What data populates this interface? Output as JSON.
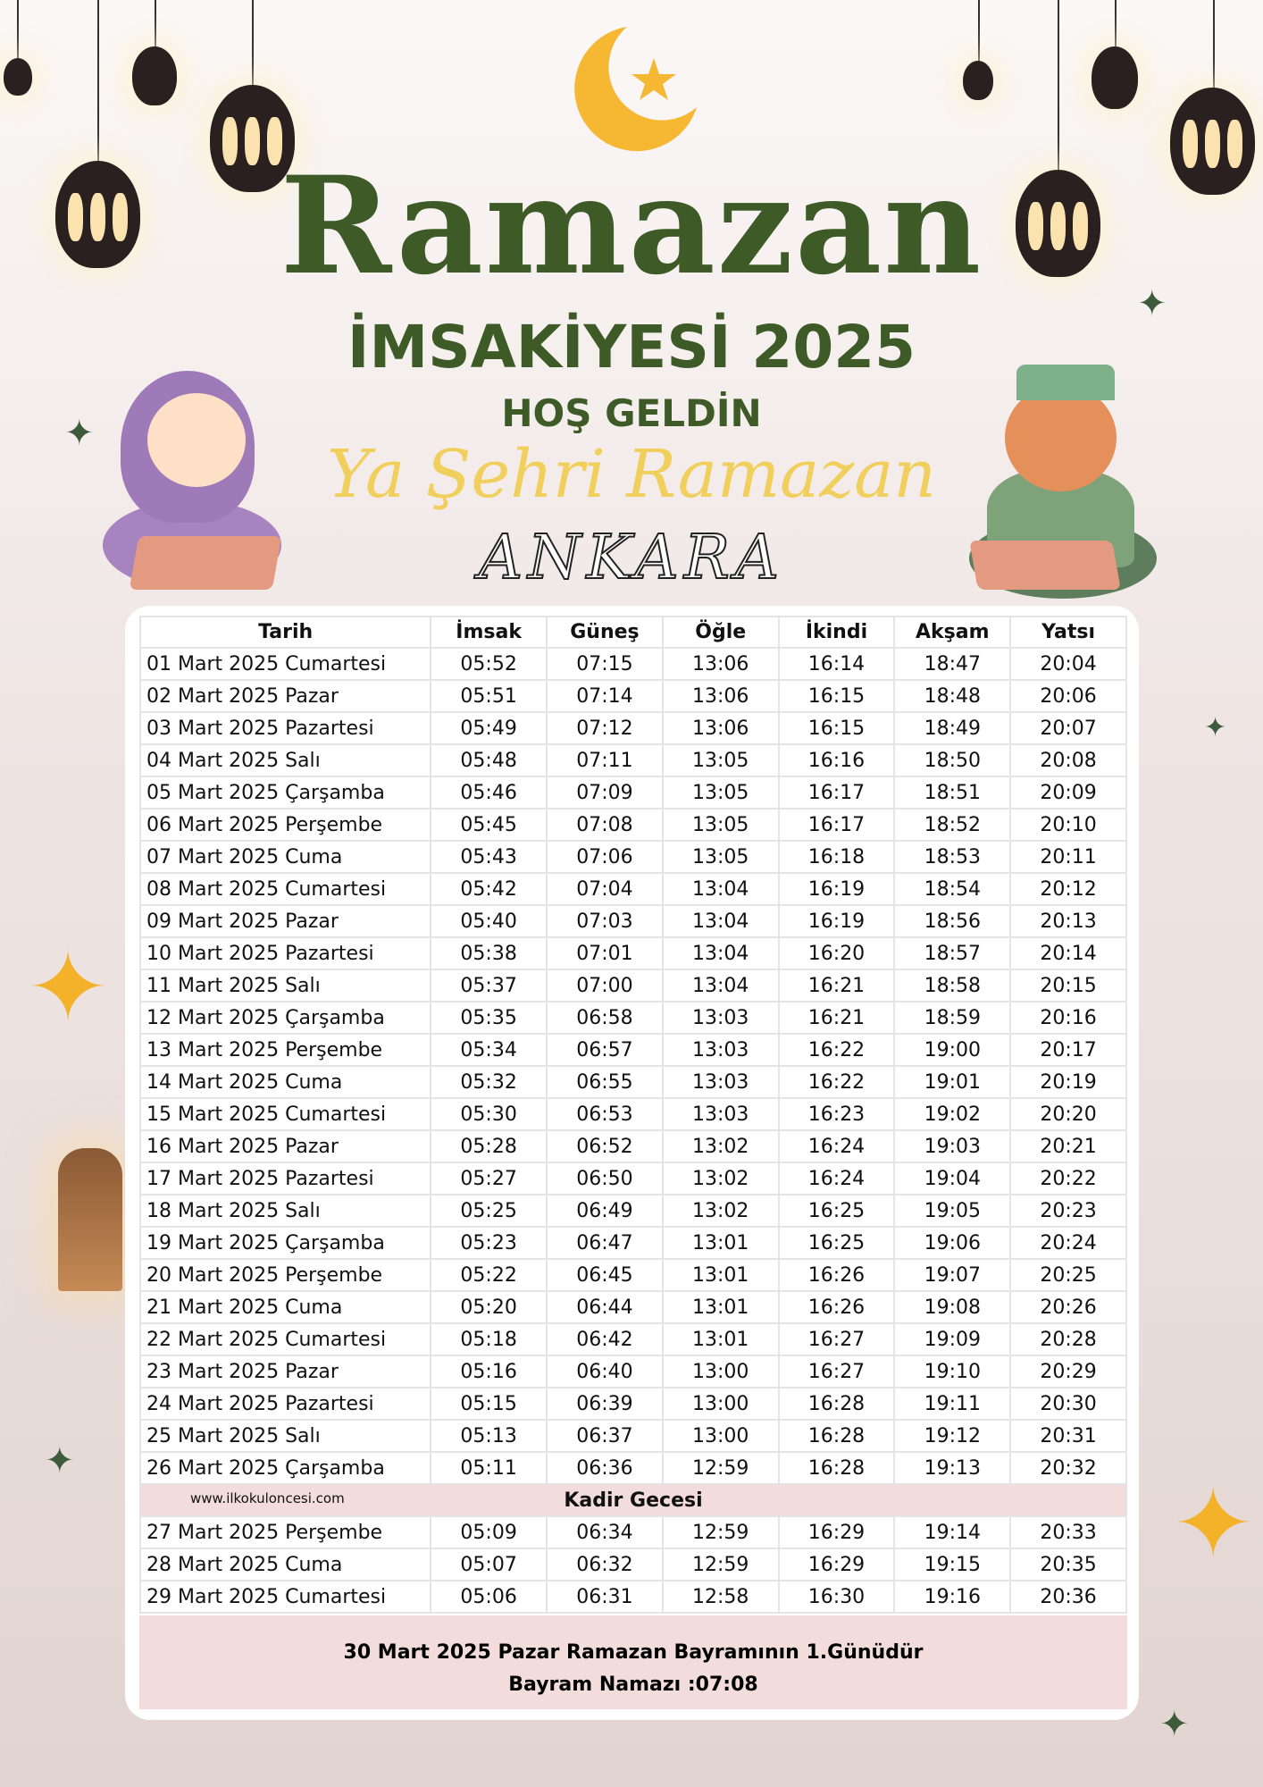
{
  "header": {
    "title": "Ramazan",
    "subtitle": "İMSAKİYESİ 2025",
    "greeting": "HOŞ GELDİN",
    "tagline": "Ya Şehri Ramazan",
    "city": "ANKARA"
  },
  "colors": {
    "title_green": "#3d5a27",
    "tagline_yellow": "#f0cf5c",
    "moon": "#f6b733",
    "highlight_row": "#f2dcdc"
  },
  "table": {
    "columns": [
      "Tarih",
      "İmsak",
      "Güneş",
      "Öğle",
      "İkindi",
      "Akşam",
      "Yatsı"
    ],
    "rows": [
      [
        "01 Mart 2025 Cumartesi",
        "05:52",
        "07:15",
        "13:06",
        "16:14",
        "18:47",
        "20:04"
      ],
      [
        "02 Mart 2025 Pazar",
        "05:51",
        "07:14",
        "13:06",
        "16:15",
        "18:48",
        "20:06"
      ],
      [
        "03 Mart 2025 Pazartesi",
        "05:49",
        "07:12",
        "13:06",
        "16:15",
        "18:49",
        "20:07"
      ],
      [
        "04 Mart 2025 Salı",
        "05:48",
        "07:11",
        "13:05",
        "16:16",
        "18:50",
        "20:08"
      ],
      [
        "05 Mart 2025 Çarşamba",
        "05:46",
        "07:09",
        "13:05",
        "16:17",
        "18:51",
        "20:09"
      ],
      [
        "06 Mart 2025 Perşembe",
        "05:45",
        "07:08",
        "13:05",
        "16:17",
        "18:52",
        "20:10"
      ],
      [
        "07 Mart 2025 Cuma",
        "05:43",
        "07:06",
        "13:05",
        "16:18",
        "18:53",
        "20:11"
      ],
      [
        "08 Mart 2025 Cumartesi",
        "05:42",
        "07:04",
        "13:04",
        "16:19",
        "18:54",
        "20:12"
      ],
      [
        "09 Mart 2025 Pazar",
        "05:40",
        "07:03",
        "13:04",
        "16:19",
        "18:56",
        "20:13"
      ],
      [
        "10 Mart 2025 Pazartesi",
        "05:38",
        "07:01",
        "13:04",
        "16:20",
        "18:57",
        "20:14"
      ],
      [
        "11 Mart 2025 Salı",
        "05:37",
        "07:00",
        "13:04",
        "16:21",
        "18:58",
        "20:15"
      ],
      [
        "12 Mart 2025 Çarşamba",
        "05:35",
        "06:58",
        "13:03",
        "16:21",
        "18:59",
        "20:16"
      ],
      [
        "13 Mart 2025 Perşembe",
        "05:34",
        "06:57",
        "13:03",
        "16:22",
        "19:00",
        "20:17"
      ],
      [
        "14 Mart 2025 Cuma",
        "05:32",
        "06:55",
        "13:03",
        "16:22",
        "19:01",
        "20:19"
      ],
      [
        "15 Mart 2025 Cumartesi",
        "05:30",
        "06:53",
        "13:03",
        "16:23",
        "19:02",
        "20:20"
      ],
      [
        "16 Mart 2025 Pazar",
        "05:28",
        "06:52",
        "13:02",
        "16:24",
        "19:03",
        "20:21"
      ],
      [
        "17 Mart 2025 Pazartesi",
        "05:27",
        "06:50",
        "13:02",
        "16:24",
        "19:04",
        "20:22"
      ],
      [
        "18 Mart 2025 Salı",
        "05:25",
        "06:49",
        "13:02",
        "16:25",
        "19:05",
        "20:23"
      ],
      [
        "19 Mart 2025 Çarşamba",
        "05:23",
        "06:47",
        "13:01",
        "16:25",
        "19:06",
        "20:24"
      ],
      [
        "20 Mart 2025 Perşembe",
        "05:22",
        "06:45",
        "13:01",
        "16:26",
        "19:07",
        "20:25"
      ],
      [
        "21 Mart 2025 Cuma",
        "05:20",
        "06:44",
        "13:01",
        "16:26",
        "19:08",
        "20:26"
      ],
      [
        "22 Mart 2025 Cumartesi",
        "05:18",
        "06:42",
        "13:01",
        "16:27",
        "19:09",
        "20:28"
      ],
      [
        "23 Mart 2025 Pazar",
        "05:16",
        "06:40",
        "13:00",
        "16:27",
        "19:10",
        "20:29"
      ],
      [
        "24 Mart 2025 Pazartesi",
        "05:15",
        "06:39",
        "13:00",
        "16:28",
        "19:11",
        "20:30"
      ],
      [
        "25 Mart 2025 Salı",
        "05:13",
        "06:37",
        "13:00",
        "16:28",
        "19:12",
        "20:31"
      ],
      [
        "26 Mart 2025 Çarşamba",
        "05:11",
        "06:36",
        "12:59",
        "16:28",
        "19:13",
        "20:32"
      ]
    ],
    "kadir": {
      "label": "Kadir Gecesi",
      "website": "www.ilkokuloncesi.com"
    },
    "rows_after": [
      [
        "27 Mart 2025 Perşembe",
        "05:09",
        "06:34",
        "12:59",
        "16:29",
        "19:14",
        "20:33"
      ],
      [
        "28 Mart 2025 Cuma",
        "05:07",
        "06:32",
        "12:59",
        "16:29",
        "19:15",
        "20:35"
      ],
      [
        "29 Mart 2025 Cumartesi",
        "05:06",
        "06:31",
        "12:58",
        "16:30",
        "19:16",
        "20:36"
      ]
    ]
  },
  "footer": {
    "line1": "30 Mart 2025 Pazar Ramazan Bayramının 1.Günüdür",
    "line2": "Bayram Namazı :07:08"
  }
}
